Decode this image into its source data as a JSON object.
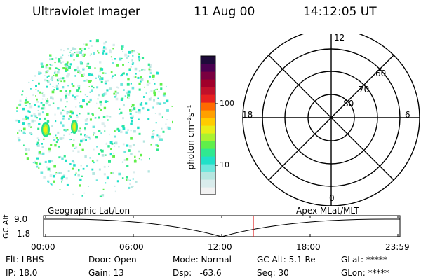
{
  "header": {
    "title": "Ultraviolet Imager",
    "date": "11 Aug 00",
    "time": "14:12:05 UT"
  },
  "colorbar": {
    "unit_label": "photon cm⁻²s⁻¹",
    "ticks": [
      "100",
      "10"
    ],
    "colors": [
      "#f2f2f2",
      "#d9ecec",
      "#b6e6e0",
      "#6ee6dc",
      "#20e0c8",
      "#30e890",
      "#60ef4a",
      "#aaf230",
      "#e8ee18",
      "#ffcc00",
      "#ffa000",
      "#ff6a00",
      "#e62020",
      "#c0102a",
      "#a0002a",
      "#7a0040",
      "#4a0050",
      "#1e0a3a"
    ]
  },
  "polar": {
    "top_label": "12",
    "bottom_label": "0",
    "left_label": "18",
    "right_label": "6",
    "lat_labels": [
      "60",
      "70",
      "80"
    ]
  },
  "timeline": {
    "left_title": "Geographic Lat/Lon",
    "right_title": "Apex MLat/MLT",
    "y_axis_label": "GC Alt",
    "y_ticks": [
      "9.0",
      "1.8"
    ],
    "x_ticks": [
      "00:00",
      "06:00",
      "12:00",
      "18:00",
      "23:59"
    ],
    "current_marker_color": "#e02020"
  },
  "footer": {
    "row1": [
      "Flt: LBHS",
      "Door: Open",
      "Mode: Normal",
      "GC Alt: 5.1 Re",
      "GLat: *****"
    ],
    "row2": [
      "IP: 18.0",
      "Gain: 13",
      "Dsp:   -63.6",
      "Seq: 30",
      "GLon: *****"
    ]
  }
}
